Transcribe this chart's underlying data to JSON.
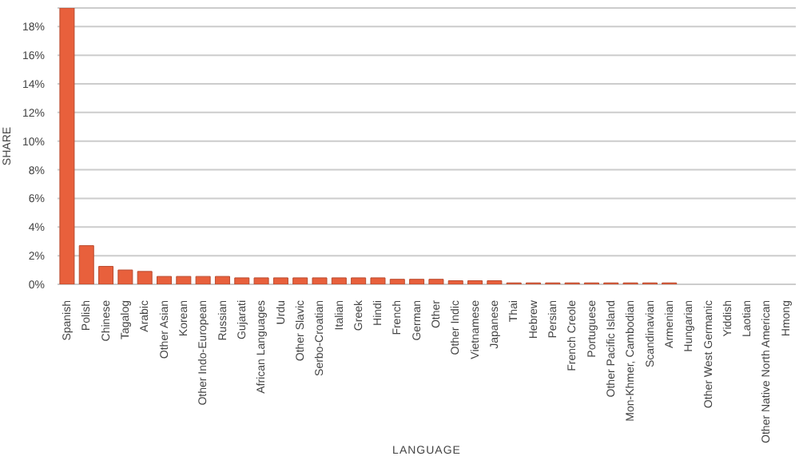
{
  "chart_data": {
    "type": "bar",
    "xlabel": "LANGUAGE",
    "ylabel": "SHARE",
    "categories": [
      "Spanish",
      "Polish",
      "Chinese",
      "Tagalog",
      "Arabic",
      "Other Asian",
      "Korean",
      "Other Indo-European",
      "Russian",
      "Gujarati",
      "African Languages",
      "Urdu",
      "Other Slavic",
      "Serbo-Croatian",
      "Italian",
      "Greek",
      "Hindi",
      "French",
      "German",
      "Other",
      "Other Indic",
      "Vietnamese",
      "Japanese",
      "Thai",
      "Hebrew",
      "Persian",
      "French Creole",
      "Portuguese",
      "Other Pacific Island",
      "Mon-Khmer, Cambodian",
      "Scandinavian",
      "Armenian",
      "Hungarian",
      "Other West Germanic",
      "Yiddish",
      "Laotian",
      "Other Native North American",
      "Hmong"
    ],
    "values": [
      19.3,
      2.7,
      1.25,
      1.0,
      0.9,
      0.55,
      0.55,
      0.55,
      0.55,
      0.45,
      0.45,
      0.45,
      0.45,
      0.45,
      0.45,
      0.45,
      0.45,
      0.35,
      0.35,
      0.35,
      0.25,
      0.25,
      0.25,
      0.1,
      0.1,
      0.1,
      0.1,
      0.1,
      0.1,
      0.1,
      0.1,
      0.1,
      0,
      0,
      0,
      0,
      0,
      0
    ],
    "color": "#e8603c",
    "ylim": [
      0,
      19.3
    ],
    "yticks": [
      {
        "value": 0,
        "label": "0%"
      },
      {
        "value": 2,
        "label": "2%"
      },
      {
        "value": 4,
        "label": "4%"
      },
      {
        "value": 6,
        "label": "6%"
      },
      {
        "value": 8,
        "label": "8%"
      },
      {
        "value": 10,
        "label": "10%"
      },
      {
        "value": 12,
        "label": "12%"
      },
      {
        "value": 14,
        "label": "14%"
      },
      {
        "value": 16,
        "label": "16%"
      },
      {
        "value": 18,
        "label": "18%"
      }
    ],
    "grid": "y",
    "legend": false
  }
}
